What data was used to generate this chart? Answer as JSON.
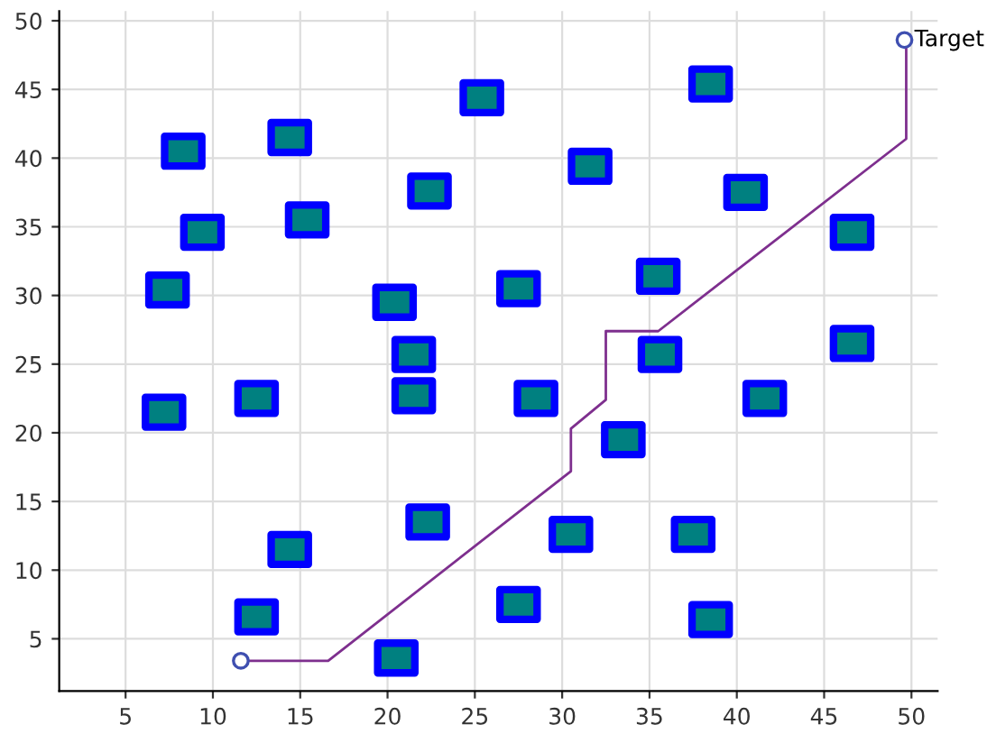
{
  "chart_data": {
    "type": "scatter",
    "xlim": [
      1.2,
      51.5
    ],
    "ylim": [
      1.2,
      50.7
    ],
    "xticks": [
      5,
      10,
      15,
      20,
      25,
      30,
      35,
      40,
      45,
      50
    ],
    "yticks": [
      5,
      10,
      15,
      20,
      25,
      30,
      35,
      40,
      45,
      50
    ],
    "grid": true,
    "legend": false,
    "series": [
      {
        "marker": "square",
        "color": "#008080",
        "x": [
          8.3,
          14.4,
          9.4,
          15.4,
          7.4,
          25.4,
          22.4,
          20.4,
          21.5,
          21.5,
          7.2,
          12.5,
          27.5,
          28.5,
          31.6,
          38.5,
          40.5,
          35.5,
          35.6,
          33.5,
          41.6,
          46.6,
          46.6,
          14.4,
          22.3,
          12.5,
          20.5,
          27.5,
          30.5,
          37.5,
          38.5
        ],
        "values": [
          40.5,
          41.5,
          34.6,
          35.5,
          30.4,
          44.4,
          37.6,
          29.5,
          25.7,
          22.7,
          21.5,
          22.5,
          30.5,
          22.5,
          39.4,
          45.4,
          37.5,
          31.4,
          25.7,
          19.5,
          22.5,
          34.6,
          26.5,
          11.5,
          13.5,
          6.6,
          3.6,
          7.5,
          12.6,
          12.6,
          6.4
        ]
      },
      {
        "type": "line",
        "marker": "none",
        "color": "#7e2f8e",
        "x": [
          11.6,
          16.6,
          30.5,
          30.5,
          32.5,
          32.5,
          35.5,
          49.7,
          49.7
        ],
        "values": [
          3.4,
          3.4,
          17.2,
          20.3,
          22.4,
          27.4,
          27.4,
          41.4,
          48.6
        ]
      },
      {
        "marker": "circle",
        "color": "#3f4fb0",
        "x": [
          11.6,
          49.6
        ],
        "values": [
          3.4,
          48.6
        ]
      }
    ],
    "annotations": [
      {
        "text": "Target",
        "x": 49.6,
        "y": 48.6
      }
    ]
  }
}
